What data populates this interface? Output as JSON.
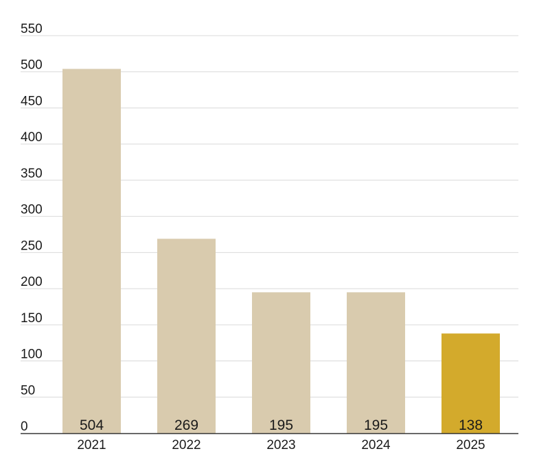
{
  "chart_data": {
    "type": "bar",
    "categories": [
      "2021",
      "2022",
      "2023",
      "2024",
      "2025"
    ],
    "values": [
      504,
      269,
      195,
      195,
      138
    ],
    "value_labels": [
      "504",
      "269",
      "195",
      "195",
      "138"
    ],
    "yticks": [
      0,
      50,
      100,
      150,
      200,
      250,
      300,
      350,
      400,
      450,
      500,
      550
    ],
    "ytick_labels": [
      "0",
      "50",
      "100",
      "150",
      "200",
      "250",
      "300",
      "350",
      "400",
      "450",
      "500",
      "550"
    ],
    "ylim": [
      0,
      550
    ],
    "grid": true,
    "title": "",
    "xlabel": "",
    "ylabel": "",
    "colors": {
      "bar": "#d9cbae",
      "highlight": "#d3aa2c",
      "grid": "#d9d9d9",
      "axis": "#333333"
    },
    "highlight_index": 4
  }
}
